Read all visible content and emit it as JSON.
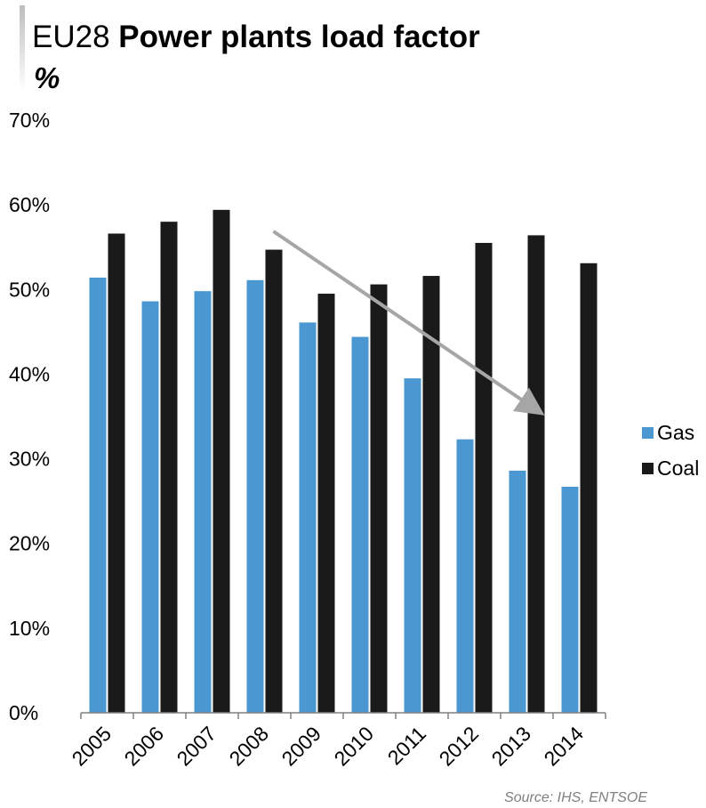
{
  "title": {
    "prefix": "EU28",
    "main": "Power plants load factor",
    "unit": "%"
  },
  "source": "Source: IHS, ENTSOE",
  "colors": {
    "Gas": "#4a97d1",
    "Coal": "#1a1a1a",
    "axis": "#808080",
    "arrow": "#a6a6a6",
    "title_accent": "#bdbdbd"
  },
  "chart_data": {
    "type": "bar",
    "title": "EU28 Power plants load factor",
    "ylabel": "%",
    "xlabel": "",
    "categories": [
      "2005",
      "2006",
      "2007",
      "2008",
      "2009",
      "2010",
      "2011",
      "2012",
      "2013",
      "2014"
    ],
    "series": [
      {
        "name": "Gas",
        "values": [
          51.4,
          48.6,
          49.8,
          51.1,
          46.1,
          44.4,
          39.5,
          32.3,
          28.6,
          26.7
        ]
      },
      {
        "name": "Coal",
        "values": [
          56.6,
          58.0,
          59.4,
          54.7,
          49.5,
          50.6,
          51.6,
          55.5,
          56.4,
          53.1
        ]
      }
    ],
    "ylim": [
      0,
      70
    ],
    "yticks": [
      "0%",
      "10%",
      "20%",
      "30%",
      "40%",
      "50%",
      "60%",
      "70%"
    ],
    "grid": false,
    "legend": "right",
    "annotations": [
      {
        "type": "arrow",
        "description": "downward trend arrow from 2008 to 2013"
      }
    ]
  }
}
